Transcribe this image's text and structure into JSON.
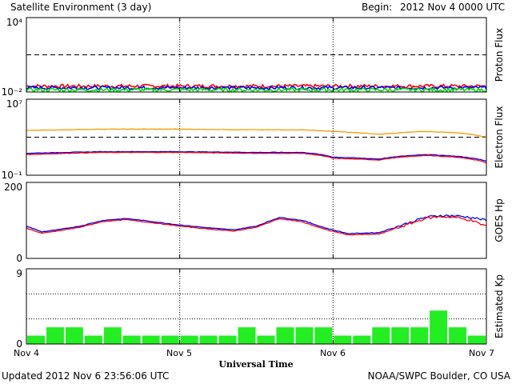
{
  "header": {
    "title": "Satellite Environment (3 day)",
    "begin_label": "Begin:",
    "begin_value": "2012 Nov 4 0000 UTC"
  },
  "footer": {
    "updated": "Updated 2012 Nov  6 23:56:06 UTC",
    "credit": "NOAA/SWPC Boulder, CO USA"
  },
  "x_axis": {
    "label": "Universal Time",
    "tick_labels": [
      "Nov 4",
      "Nov 5",
      "Nov 6",
      "Nov 7"
    ],
    "range_days": [
      0,
      3
    ]
  },
  "colors": {
    "red": "#ff0000",
    "blue": "#0000ff",
    "green": "#00e000",
    "kp_green": "#22ee22",
    "orange": "#ff9900",
    "dashed": "#000000"
  },
  "chart_data": [
    {
      "type": "line",
      "ylabel": "Proton Flux",
      "scale": "log",
      "ylim": [
        0.01,
        10000
      ],
      "y_tick_labels": [
        "10⁴",
        "10⁻²"
      ],
      "threshold": 10,
      "series": [
        {
          "color": "red",
          "approx_level": 0.03
        },
        {
          "color": "blue",
          "approx_level": 0.022
        },
        {
          "color": "green",
          "approx_level": 0.015
        }
      ]
    },
    {
      "type": "line",
      "ylabel": "Electron Flux",
      "scale": "log",
      "ylim": [
        0.1,
        10000000
      ],
      "y_tick_labels": [
        "10⁷",
        "10⁻¹"
      ],
      "threshold": 1000,
      "series": [
        {
          "color": "orange",
          "t": [
            0,
            0.5,
            1.0,
            1.5,
            1.8,
            2.0,
            2.3,
            2.6,
            2.8,
            3.0
          ],
          "values": [
            5000,
            7000,
            7000,
            6000,
            6000,
            4000,
            2000,
            4000,
            3000,
            1000
          ]
        },
        {
          "color": "blue",
          "t": [
            0,
            0.5,
            1.0,
            1.5,
            1.8,
            2.0,
            2.3,
            2.6,
            2.8,
            3.0
          ],
          "values": [
            20,
            30,
            30,
            25,
            25,
            8,
            5,
            15,
            10,
            3
          ]
        },
        {
          "color": "red",
          "t": [
            0,
            0.5,
            1.0,
            1.5,
            1.8,
            2.0,
            2.3,
            2.6,
            2.8,
            3.0
          ],
          "values": [
            15,
            25,
            25,
            20,
            20,
            6,
            4,
            12,
            8,
            2
          ]
        }
      ]
    },
    {
      "type": "line",
      "ylabel": "GOES Hp",
      "ylim": [
        0,
        200
      ],
      "y_tick_labels": [
        "200",
        "0"
      ],
      "series": [
        {
          "color": "blue",
          "t": [
            0,
            0.1,
            0.2,
            0.35,
            0.5,
            0.65,
            0.8,
            1.0,
            1.2,
            1.35,
            1.5,
            1.65,
            1.8,
            1.95,
            2.1,
            2.3,
            2.45,
            2.6,
            2.7,
            2.8,
            2.9,
            3.0
          ],
          "values": [
            85,
            70,
            75,
            85,
            100,
            105,
            98,
            88,
            80,
            75,
            85,
            108,
            100,
            80,
            65,
            68,
            88,
            108,
            113,
            112,
            108,
            100
          ]
        },
        {
          "color": "red",
          "t": [
            0,
            0.1,
            0.2,
            0.35,
            0.5,
            0.65,
            0.8,
            1.0,
            1.2,
            1.35,
            1.5,
            1.65,
            1.8,
            1.95,
            2.1,
            2.3,
            2.45,
            2.6,
            2.7,
            2.8,
            2.9,
            3.0
          ],
          "values": [
            80,
            66,
            72,
            82,
            97,
            102,
            95,
            85,
            77,
            72,
            82,
            105,
            96,
            76,
            62,
            64,
            84,
            105,
            110,
            108,
            100,
            85
          ]
        }
      ]
    },
    {
      "type": "bar",
      "ylabel": "Estimated Kp",
      "ylim": [
        0,
        9
      ],
      "y_tick_labels": [
        "9",
        "0"
      ],
      "values": [
        1,
        2,
        2,
        1,
        2,
        1,
        1,
        1,
        1,
        1,
        1,
        2,
        1,
        2,
        2,
        2,
        1,
        1,
        2,
        2,
        2,
        4,
        2,
        1
      ]
    }
  ]
}
